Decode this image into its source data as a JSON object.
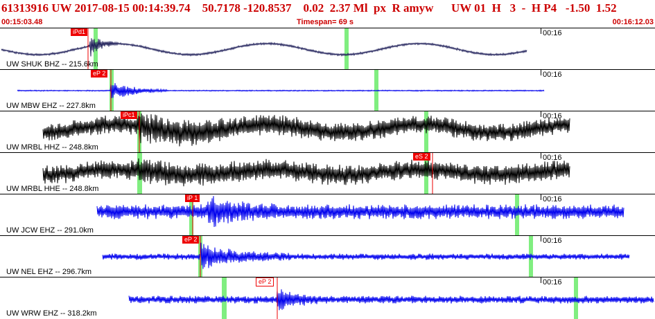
{
  "header": {
    "title": "61313916 UW 2017-08-15 00:14:39.74    50.7178 -120.8537    0.02  2.37 Ml  px  R amyw      UW 01  H   3  -  H P4   -1.50  1.52",
    "start_time": "00:15:03.48",
    "timespan": "Timespan=  69 s",
    "end_time": "00:16:12.03"
  },
  "colors": {
    "dark_trace": "#1a1a5a",
    "blue_trace": "#0000ee",
    "black_trace": "#000000",
    "pick": "#ee0000",
    "window": "#80ee80"
  },
  "traces": [
    {
      "label": "UW SHUK BHZ -- 215.6km",
      "time_tick": "00:16",
      "pick": "iPd1",
      "color": "#20205a",
      "pick_style": "fill"
    },
    {
      "label": "UW MBW EHZ -- 227.8km",
      "time_tick": "00:16",
      "pick": "eP 2",
      "color": "#0000ee",
      "pick_style": "fill"
    },
    {
      "label": "UW MRBL HHZ -- 248.8km",
      "time_tick": "00:16",
      "pick": "iPc1",
      "color": "#000000",
      "pick_style": "fill"
    },
    {
      "label": "UW MRBL HHE -- 248.8km",
      "time_tick": "00:16",
      "pick": "eS 2",
      "color": "#000000",
      "pick_style": "fill"
    },
    {
      "label": "UW JCW EHZ -- 291.0km",
      "time_tick": "00:16",
      "pick": "iP 1",
      "color": "#0000ee",
      "pick_style": "fill"
    },
    {
      "label": "UW NEL EHZ -- 296.7km",
      "time_tick": "00:16",
      "pick": "eP 2",
      "color": "#0000ee",
      "pick_style": "fill"
    },
    {
      "label": "UW WRW EHZ -- 318.2km",
      "time_tick": "00:16",
      "pick": "eP 2",
      "color": "#0000ee",
      "pick_style": "outline"
    }
  ]
}
